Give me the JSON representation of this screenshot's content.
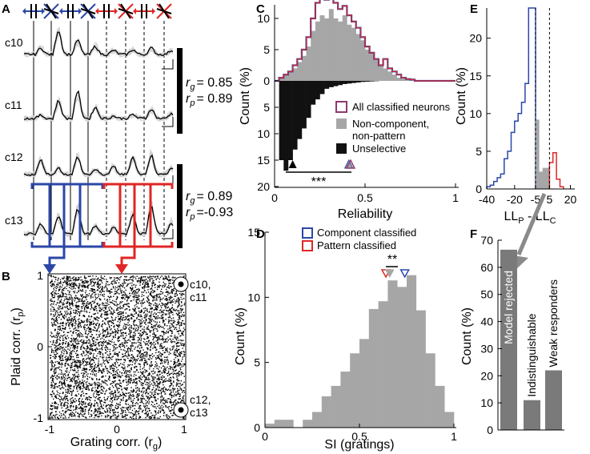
{
  "panels": {
    "A": "A",
    "B": "B",
    "C": "C",
    "D": "D",
    "E": "E",
    "F": "F"
  },
  "panel_a": {
    "cells": [
      "c10",
      "c11",
      "c12",
      "c13"
    ],
    "stats_top": {
      "rg": "= 0.85",
      "rp": "= 0.89"
    },
    "stats_bottom": {
      "rg": "= 0.89",
      "rp": "=-0.93"
    },
    "rg_symbol": "r",
    "rg_sub": "g",
    "rp_symbol": "r",
    "rp_sub": "p"
  },
  "colors": {
    "blue": "#2b47a8",
    "red": "#e02626",
    "gray": "#a6a6a6",
    "black": "#111111",
    "purple": "#8c3a6e",
    "darkgray": "#7a7a7a"
  },
  "chart_data": [
    {
      "panel": "B",
      "type": "scatter",
      "xlabel": "Grating corr. (r_g)",
      "ylabel": "Plaid corr. (r_p)",
      "xlim": [
        -1,
        1
      ],
      "ylim": [
        -1,
        1
      ],
      "xticks": [
        "-1",
        "0",
        "1"
      ],
      "yticks": [
        "1",
        "0",
        "-1"
      ],
      "annotations": [
        {
          "label1": "c10,",
          "label2": "c11",
          "x": 0.9,
          "y": 0.9
        },
        {
          "label1": "c12,",
          "label2": "c13",
          "x": 0.9,
          "y": -0.9
        }
      ]
    },
    {
      "panel": "C",
      "type": "bar",
      "xlabel": "Reliability",
      "ylabel": "Count (%)",
      "xlim": [
        0,
        1
      ],
      "xticks": [
        "0",
        "0.5",
        "1"
      ],
      "yticks_top": [
        "15",
        "10",
        "5",
        "0"
      ],
      "yticks_bottom": [
        "5",
        "10",
        "15",
        "20"
      ],
      "bin_edges_start": 0,
      "bin_width": 0.025,
      "series": [
        {
          "name": "Non-component, non-pattern",
          "values": [
            0,
            0.5,
            1,
            1.5,
            2,
            3,
            4,
            5.5,
            8,
            9.5,
            10.5,
            10,
            11.5,
            10,
            9.5,
            10.5,
            9,
            8.5,
            7.5,
            6.5,
            5,
            4.5,
            3.5,
            2.5,
            2,
            1.5,
            1,
            0.5,
            0.3,
            0.2,
            0.1,
            0,
            0,
            0,
            0,
            0,
            0,
            0,
            0,
            0
          ]
        },
        {
          "name": "All classified neurons",
          "values": [
            0,
            0.5,
            1,
            1.5,
            2.5,
            3.5,
            5,
            7,
            10,
            12.5,
            13.5,
            13,
            14.5,
            12.5,
            11.5,
            12,
            10.5,
            9.5,
            8.5,
            7,
            5.5,
            4.5,
            3.5,
            2.5,
            3.5,
            2,
            1.5,
            1,
            0.5,
            0.3,
            0.2,
            0,
            0,
            0,
            0,
            0,
            0,
            0,
            0,
            0
          ]
        },
        {
          "name": "Unselective",
          "values": [
            0,
            15,
            17,
            15,
            13,
            11,
            9,
            7,
            4.5,
            3.5,
            2.5,
            1.5,
            1.2,
            1,
            0.8,
            0.6,
            0.5,
            0.4,
            0.3,
            0.2,
            0.15,
            0.1,
            0.05,
            0,
            0,
            0,
            0,
            0,
            0,
            0,
            0,
            0,
            0,
            0,
            0,
            0,
            0,
            0,
            0,
            0
          ]
        }
      ],
      "legend": [
        "All classified neurons",
        "Non-component,",
        "non-pattern",
        "Unselective"
      ],
      "markers": {
        "unselective_median": 0.1,
        "classified_median": 0.42,
        "other_median": 0.41
      },
      "significance": "***"
    },
    {
      "panel": "D",
      "type": "bar",
      "xlabel": "SI (gratings)",
      "ylabel": "Count (%)",
      "xlim": [
        0,
        1
      ],
      "ylim": [
        0,
        15
      ],
      "xticks": [
        "0",
        "0.5",
        "1"
      ],
      "yticks": [
        "0",
        "5",
        "10",
        "15"
      ],
      "bin_edges_start": 0,
      "bin_width": 0.05,
      "values": [
        0.3,
        0.6,
        0.6,
        0,
        0.6,
        1.2,
        2.4,
        3.2,
        4.3,
        5.7,
        6.8,
        9.1,
        9.7,
        11.3,
        10.8,
        11.7,
        9.0,
        5.7,
        3.2,
        1.2
      ],
      "legend": [
        "Component classified",
        "Pattern classified"
      ],
      "markers": {
        "pattern": 0.64,
        "other": 0.66,
        "component": 0.74
      },
      "significance": "**"
    },
    {
      "panel": "E",
      "type": "bar",
      "xlabel_main": "LL",
      "xlabel_sub1": "P",
      "xlabel_mid": " - LL",
      "xlabel_sub2": "C",
      "ylabel": "Count (%)",
      "xlim": [
        -40,
        22
      ],
      "ylim": [
        0,
        24
      ],
      "xticks": [
        "-40",
        "-20",
        "-5",
        "5",
        "20"
      ],
      "yticks": [
        "0",
        "5",
        "10",
        "15",
        "20"
      ],
      "bin_edges_start": -40,
      "bin_width": 2.5,
      "series": [
        {
          "name": "Component classified",
          "range": [
            -40,
            -5
          ],
          "values": [
            0.3,
            0.5,
            1,
            1.5,
            2,
            4,
            5,
            7.5,
            9,
            10,
            11.5,
            14,
            24,
            24
          ]
        },
        {
          "name": "Weak responders",
          "range": [
            -5,
            5
          ],
          "values": [
            9.2,
            2.3,
            2.8,
            2.8
          ]
        },
        {
          "name": "Pattern classified",
          "range": [
            5,
            15
          ],
          "values": [
            3.5,
            4.8,
            1.3,
            0.3
          ]
        }
      ],
      "dashed_lines": [
        -5,
        5
      ]
    },
    {
      "panel": "F",
      "type": "bar",
      "ylabel": "Count (%)",
      "ylim": [
        0,
        70
      ],
      "yticks": [
        "0",
        "10",
        "20",
        "30",
        "40",
        "50",
        "60",
        "70"
      ],
      "categories": [
        "Model rejected",
        "Indistinguishable",
        "Weak responders"
      ],
      "values": [
        66.5,
        11,
        22
      ]
    }
  ]
}
